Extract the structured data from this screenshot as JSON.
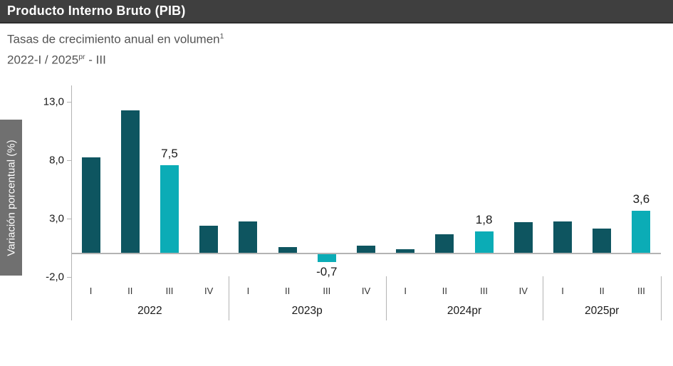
{
  "header": {
    "title": "Producto Interno Bruto (PIB)"
  },
  "subtitle": {
    "line1_text": "Tasas de crecimiento anual en volumen",
    "line1_sup": "1",
    "line2_pre": "2022-I / 2025",
    "line2_sup": "pr",
    "line2_post": " - III"
  },
  "chart_data": {
    "type": "bar",
    "title": "Producto Interno Bruto (PIB)",
    "subtitle": "Tasas de crecimiento anual en volumen (1), 2022-I / 2025pr - III",
    "ylabel": "Variación porcentual (%)",
    "xlabel": "",
    "ylim": [
      -2.5,
      15
    ],
    "grid": false,
    "legend_position": "none",
    "y_ticks": [
      {
        "value": 13,
        "label": "13,0"
      },
      {
        "value": 8,
        "label": "8,0"
      },
      {
        "value": 3,
        "label": "3,0"
      },
      {
        "value": -2,
        "label": "-2,0"
      }
    ],
    "groups": [
      {
        "year": "2022",
        "quarters": [
          {
            "q": "I",
            "value": 8.2
          },
          {
            "q": "II",
            "value": 12.2
          },
          {
            "q": "III",
            "value": 7.5,
            "highlight": true,
            "label": "7,5"
          },
          {
            "q": "IV",
            "value": 2.3
          }
        ]
      },
      {
        "year": "2023p",
        "quarters": [
          {
            "q": "I",
            "value": 2.7
          },
          {
            "q": "II",
            "value": 0.5
          },
          {
            "q": "III",
            "value": -0.7,
            "highlight": true,
            "label": "-0,7"
          },
          {
            "q": "IV",
            "value": 0.6
          }
        ]
      },
      {
        "year": "2024pr",
        "quarters": [
          {
            "q": "I",
            "value": 0.3
          },
          {
            "q": "II",
            "value": 1.6
          },
          {
            "q": "III",
            "value": 1.8,
            "highlight": true,
            "label": "1,8"
          },
          {
            "q": "IV",
            "value": 2.6
          }
        ]
      },
      {
        "year": "2025pr",
        "quarters": [
          {
            "q": "I",
            "value": 2.7
          },
          {
            "q": "II",
            "value": 2.1
          },
          {
            "q": "III",
            "value": 3.6,
            "highlight": true,
            "label": "3,6"
          }
        ]
      }
    ],
    "colors": {
      "bar": "#0E5560",
      "bar_highlight": "#0BACB6",
      "axis_line": "#B3B3B3",
      "tick_text": "#1A1A1A",
      "label_text": "#1A1A1A",
      "header_bg": "#3F3F3F",
      "ylabel_box_bg": "#707070"
    }
  }
}
